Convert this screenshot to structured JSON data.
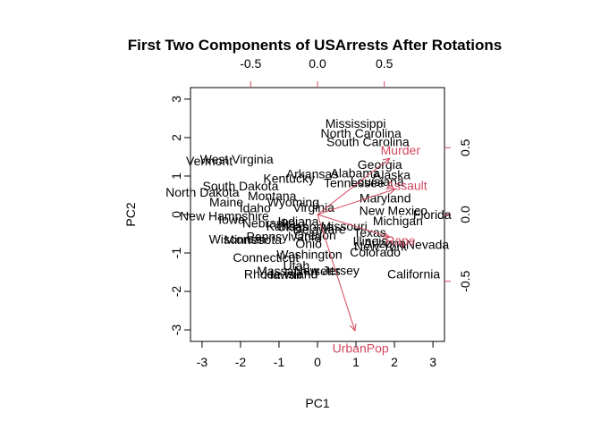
{
  "chart_data": {
    "type": "scatter",
    "title": "First Two Components of USArrests After Rotations",
    "xlabel": "PC1",
    "ylabel": "PC2",
    "xlim": [
      -3.3,
      3.3
    ],
    "ylim": [
      -3.3,
      3.3
    ],
    "x_ticks": [
      -3,
      -2,
      -1,
      0,
      1,
      2,
      3
    ],
    "y_ticks": [
      -3,
      -2,
      -1,
      0,
      1,
      2,
      3
    ],
    "x_tick_labels": [
      "-3",
      "-2",
      "-1",
      "0",
      "1",
      "2",
      "3"
    ],
    "y_tick_labels": [
      "-3",
      "-2",
      "-1",
      "0",
      "1",
      "2",
      "3"
    ],
    "secondary_xlim": [
      -0.95,
      0.95
    ],
    "secondary_ylim": [
      -0.95,
      0.95
    ],
    "secondary_x_ticks": [
      -0.5,
      0.0,
      0.5
    ],
    "secondary_y_ticks": [
      -0.5,
      0.0,
      0.5
    ],
    "secondary_x_tick_labels": [
      "-0.5",
      "0.0",
      "0.5"
    ],
    "secondary_y_tick_labels": [
      "-0.5",
      "0.0",
      "0.5"
    ],
    "grid": false,
    "colors": {
      "points": "#000000",
      "loadings": "#d2485f",
      "axes": "#000000"
    },
    "points": [
      {
        "label": "Alabama",
        "x": 0.98,
        "y": 1.08
      },
      {
        "label": "Alaska",
        "x": 1.93,
        "y": 1.03
      },
      {
        "label": "Arizona",
        "x": 1.75,
        "y": -0.74
      },
      {
        "label": "Arkansas",
        "x": -0.14,
        "y": 1.06
      },
      {
        "label": "California",
        "x": 2.5,
        "y": -1.55
      },
      {
        "label": "Colorado",
        "x": 1.5,
        "y": -0.98
      },
      {
        "label": "Connecticut",
        "x": -1.34,
        "y": -1.11
      },
      {
        "label": "Delaware",
        "x": 0.05,
        "y": -0.38
      },
      {
        "label": "Florida",
        "x": 2.98,
        "y": 0.0
      },
      {
        "label": "Georgia",
        "x": 1.62,
        "y": 1.3
      },
      {
        "label": "Hawaii",
        "x": -0.9,
        "y": -1.56
      },
      {
        "label": "Idaho",
        "x": -1.62,
        "y": 0.18
      },
      {
        "label": "Illinois",
        "x": 1.37,
        "y": -0.69
      },
      {
        "label": "Indiana",
        "x": -0.5,
        "y": -0.17
      },
      {
        "label": "Iowa",
        "x": -2.23,
        "y": -0.13
      },
      {
        "label": "Kansas",
        "x": -0.79,
        "y": -0.3
      },
      {
        "label": "Kentucky",
        "x": -0.74,
        "y": 0.94
      },
      {
        "label": "Louisiana",
        "x": 1.55,
        "y": 0.86
      },
      {
        "label": "Maine",
        "x": -2.37,
        "y": 0.32
      },
      {
        "label": "Maryland",
        "x": 1.76,
        "y": 0.43
      },
      {
        "label": "Massachusetts",
        "x": -0.49,
        "y": -1.46
      },
      {
        "label": "Michigan",
        "x": 2.09,
        "y": -0.16
      },
      {
        "label": "Minnesota",
        "x": -1.68,
        "y": -0.65
      },
      {
        "label": "Mississippi",
        "x": 0.99,
        "y": 2.37
      },
      {
        "label": "Missouri",
        "x": 0.69,
        "y": -0.3
      },
      {
        "label": "Montana",
        "x": -1.18,
        "y": 0.49
      },
      {
        "label": "Nebraska",
        "x": -1.26,
        "y": -0.22
      },
      {
        "label": "Nevada",
        "x": 2.86,
        "y": -0.78
      },
      {
        "label": "New Hampshire",
        "x": -2.42,
        "y": -0.03
      },
      {
        "label": "New Jersey",
        "x": 0.24,
        "y": -1.45
      },
      {
        "label": "New Mexico",
        "x": 1.97,
        "y": 0.1
      },
      {
        "label": "New York",
        "x": 1.64,
        "y": -0.82
      },
      {
        "label": "North Carolina",
        "x": 1.13,
        "y": 2.12
      },
      {
        "label": "North Dakota",
        "x": -2.99,
        "y": 0.58
      },
      {
        "label": "Ohio",
        "x": -0.23,
        "y": -0.75
      },
      {
        "label": "Oklahoma",
        "x": -0.32,
        "y": -0.31
      },
      {
        "label": "Oregon",
        "x": -0.06,
        "y": -0.53
      },
      {
        "label": "Pennsylvania",
        "x": -0.88,
        "y": -0.57
      },
      {
        "label": "Rhode Island",
        "x": -0.95,
        "y": -1.54
      },
      {
        "label": "South Carolina",
        "x": 1.31,
        "y": 1.89
      },
      {
        "label": "South Dakota",
        "x": -2.0,
        "y": 0.74
      },
      {
        "label": "Tennessee",
        "x": 0.95,
        "y": 0.83
      },
      {
        "label": "Texas",
        "x": 1.36,
        "y": -0.46
      },
      {
        "label": "Utah",
        "x": -0.55,
        "y": -1.32
      },
      {
        "label": "Vermont",
        "x": -2.81,
        "y": 1.39
      },
      {
        "label": "Virginia",
        "x": -0.1,
        "y": 0.19
      },
      {
        "label": "Washington",
        "x": -0.21,
        "y": -1.03
      },
      {
        "label": "West Virginia",
        "x": -2.1,
        "y": 1.44
      },
      {
        "label": "Wisconsin",
        "x": -2.08,
        "y": -0.64
      },
      {
        "label": "Wyoming",
        "x": -0.63,
        "y": 0.32
      }
    ],
    "loadings": [
      {
        "label": "Murder",
        "x": 0.54,
        "y": 0.42
      },
      {
        "label": "Assault",
        "x": 0.58,
        "y": 0.19
      },
      {
        "label": "UrbanPop",
        "x": 0.28,
        "y": -0.87
      },
      {
        "label": "Rape",
        "x": 0.54,
        "y": -0.17
      }
    ]
  }
}
